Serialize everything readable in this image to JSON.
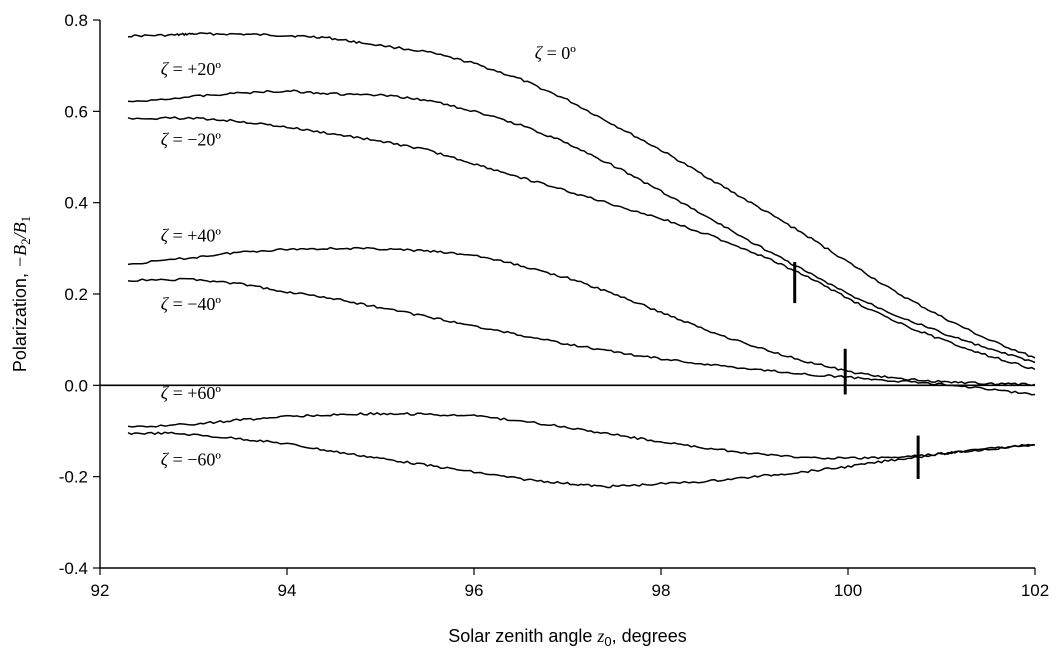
{
  "chart_data": {
    "type": "line",
    "xlabel": "Solar zenith angle",
    "xlabel_symbol": "z",
    "xlabel_sub": "0",
    "xlabel_suffix": ", degrees",
    "ylabel": "Polarization, ",
    "ylabel_expr": "−B",
    "ylabel_sub1": "2",
    "ylabel_div": "/B",
    "ylabel_sub2": "1",
    "xlim": [
      92,
      102
    ],
    "ylim": [
      -0.4,
      0.8
    ],
    "xticks": [
      92,
      94,
      96,
      98,
      100,
      102
    ],
    "xtick_labels": [
      "92",
      "94",
      "96",
      "98",
      "100",
      "102"
    ],
    "yticks": [
      -0.4,
      -0.2,
      0.0,
      0.2,
      0.4,
      0.6,
      0.8
    ],
    "ytick_labels": [
      "-0.4",
      "-0.2",
      "0.0",
      "0.2",
      "0.4",
      "0.6",
      "0.8"
    ],
    "grid": false,
    "legend": "none",
    "zero_line": true,
    "series": [
      {
        "name": "ζ = 0º",
        "label": "ζ = 0º",
        "x": [
          92.3,
          92.8,
          93.0,
          93.5,
          94.0,
          94.4,
          94.8,
          95.5,
          96.0,
          96.5,
          97.0,
          97.5,
          98.0,
          98.5,
          99.0,
          99.5,
          100.0,
          100.5,
          101.0,
          101.5,
          102.0
        ],
        "y": [
          0.765,
          0.767,
          0.77,
          0.769,
          0.766,
          0.762,
          0.75,
          0.73,
          0.705,
          0.67,
          0.625,
          0.57,
          0.515,
          0.455,
          0.395,
          0.335,
          0.27,
          0.205,
          0.15,
          0.1,
          0.06
        ]
      },
      {
        "name": "ζ = +20º",
        "label": "ζ = +20º",
        "x": [
          92.3,
          93.0,
          93.5,
          94.0,
          94.5,
          95.0,
          95.5,
          96.0,
          96.5,
          97.0,
          97.5,
          98.0,
          98.5,
          99.0,
          99.5,
          100.0,
          100.5,
          101.0,
          101.5,
          102.0
        ],
        "y": [
          0.62,
          0.633,
          0.64,
          0.645,
          0.638,
          0.635,
          0.625,
          0.6,
          0.57,
          0.53,
          0.48,
          0.425,
          0.368,
          0.31,
          0.255,
          0.2,
          0.155,
          0.115,
          0.08,
          0.05
        ]
      },
      {
        "name": "ζ = −20º",
        "label": "ζ = −20º",
        "x": [
          92.3,
          93.0,
          93.5,
          94.0,
          94.5,
          95.0,
          95.5,
          96.0,
          96.5,
          97.0,
          97.5,
          98.0,
          98.5,
          99.0,
          99.5,
          100.0,
          100.5,
          101.0,
          101.5,
          102.0
        ],
        "y": [
          0.585,
          0.585,
          0.578,
          0.565,
          0.55,
          0.535,
          0.515,
          0.485,
          0.455,
          0.425,
          0.395,
          0.365,
          0.33,
          0.29,
          0.245,
          0.19,
          0.14,
          0.1,
          0.065,
          0.035
        ]
      },
      {
        "name": "ζ = +40º",
        "label": "ζ = +40º",
        "x": [
          92.3,
          93.0,
          93.5,
          94.0,
          94.5,
          95.0,
          95.5,
          96.0,
          96.5,
          97.0,
          97.5,
          98.0,
          98.5,
          99.0,
          99.5,
          100.0,
          100.5,
          101.0,
          101.5,
          102.0
        ],
        "y": [
          0.265,
          0.28,
          0.292,
          0.298,
          0.3,
          0.299,
          0.294,
          0.285,
          0.262,
          0.235,
          0.2,
          0.16,
          0.12,
          0.085,
          0.055,
          0.03,
          0.015,
          0.008,
          0.004,
          0.002
        ]
      },
      {
        "name": "ζ = −40º",
        "label": "ζ = −40º",
        "x": [
          92.3,
          93.0,
          93.5,
          94.0,
          94.5,
          95.0,
          95.5,
          96.0,
          96.5,
          97.0,
          97.5,
          98.0,
          98.5,
          99.0,
          99.5,
          100.0,
          100.5,
          101.0,
          101.5,
          102.0
        ],
        "y": [
          0.23,
          0.232,
          0.222,
          0.205,
          0.19,
          0.17,
          0.15,
          0.13,
          0.11,
          0.09,
          0.073,
          0.058,
          0.045,
          0.035,
          0.025,
          0.018,
          0.01,
          0.002,
          -0.008,
          -0.02
        ]
      },
      {
        "name": "ζ = +60º",
        "label": "ζ = +60º",
        "x": [
          92.3,
          93.0,
          93.5,
          94.0,
          94.5,
          95.0,
          95.5,
          96.0,
          96.5,
          97.0,
          97.5,
          98.0,
          98.5,
          99.0,
          99.5,
          100.0,
          100.5,
          101.0,
          101.5,
          102.0
        ],
        "y": [
          -0.092,
          -0.085,
          -0.076,
          -0.068,
          -0.064,
          -0.062,
          -0.063,
          -0.067,
          -0.078,
          -0.092,
          -0.108,
          -0.124,
          -0.138,
          -0.15,
          -0.158,
          -0.16,
          -0.158,
          -0.15,
          -0.138,
          -0.13
        ]
      },
      {
        "name": "ζ = −60º",
        "label": "ζ = −60º",
        "x": [
          92.3,
          92.8,
          93.5,
          94.0,
          94.5,
          95.0,
          95.5,
          96.0,
          96.5,
          97.0,
          97.4,
          97.8,
          98.5,
          99.0,
          99.5,
          100.0,
          100.5,
          101.0,
          101.5,
          102.0
        ],
        "y": [
          -0.105,
          -0.105,
          -0.117,
          -0.128,
          -0.145,
          -0.16,
          -0.175,
          -0.19,
          -0.205,
          -0.215,
          -0.222,
          -0.218,
          -0.21,
          -0.2,
          -0.19,
          -0.178,
          -0.163,
          -0.15,
          -0.14,
          -0.13
        ]
      }
    ],
    "markers": [
      {
        "x": 99.43,
        "y_from": 0.18,
        "y_to": 0.27
      },
      {
        "x": 99.97,
        "y_from": -0.02,
        "y_to": 0.08
      },
      {
        "x": 100.75,
        "y_from": -0.205,
        "y_to": -0.11
      }
    ],
    "annotations": [
      {
        "greek": "ζ",
        "rest": " = 0º",
        "x": 96.65,
        "y": 0.715
      },
      {
        "greek": "ζ",
        "rest": " = +20º",
        "x": 92.65,
        "y": 0.68
      },
      {
        "greek": "ζ",
        "rest": " = −20º",
        "x": 92.65,
        "y": 0.525
      },
      {
        "greek": "ζ",
        "rest": " = +40º",
        "x": 92.65,
        "y": 0.315
      },
      {
        "greek": "ζ",
        "rest": " = −40º",
        "x": 92.65,
        "y": 0.165
      },
      {
        "greek": "ζ",
        "rest": " = +60º",
        "x": 92.65,
        "y": -0.03
      },
      {
        "greek": "ζ",
        "rest": " = −60º",
        "x": 92.65,
        "y": -0.175
      }
    ]
  }
}
